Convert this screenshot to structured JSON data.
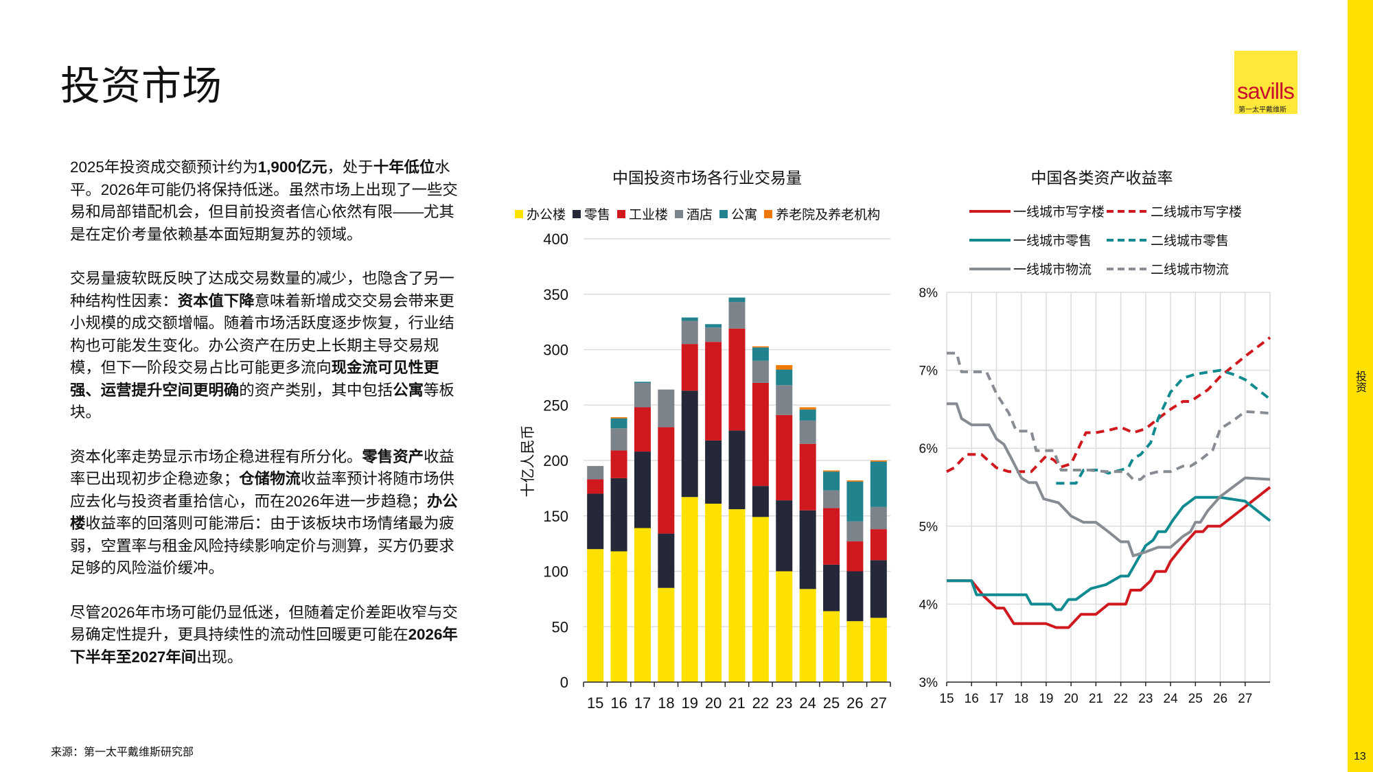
{
  "page_title": "投资市场",
  "paragraphs": [
    [
      {
        "t": "2025年投资成交额预计约为"
      },
      {
        "t": "1,900亿元",
        "b": true
      },
      {
        "t": "，处于"
      },
      {
        "t": "十年低位",
        "b": true
      },
      {
        "t": "水平。2026年可能仍将保持低迷。虽然市场上出现了一些交易和局部错配机会，但目前投资者信心依然有限——尤其是在定价考量依赖基本面短期复苏的领域。"
      }
    ],
    [
      {
        "t": "交易量疲软既反映了达成交易数量的减少，也隐含了另一种结构性因素："
      },
      {
        "t": "资本值下降",
        "b": true
      },
      {
        "t": "意味着新增成交交易会带来更小规模的成交额增幅。随着市场活跃度逐步恢复，行业结构也可能发生变化。办公资产在历史上长期主导交易规模，但下一阶段交易占比可能更多流向"
      },
      {
        "t": "现金流可见性更强、运营提升空间更明确",
        "b": true
      },
      {
        "t": "的资产类别，其中包括"
      },
      {
        "t": "公寓",
        "b": true
      },
      {
        "t": "等板块。"
      }
    ],
    [
      {
        "t": "资本化率走势显示市场企稳进程有所分化。"
      },
      {
        "t": "零售资产",
        "b": true
      },
      {
        "t": "收益率已出现初步企稳迹象；"
      },
      {
        "t": "仓储物流",
        "b": true
      },
      {
        "t": "收益率预计将随市场供应去化与投资者重拾信心，而在2026年进一步趋稳；"
      },
      {
        "t": "办公楼",
        "b": true
      },
      {
        "t": "收益率的回落则可能滞后：由于该板块市场情绪最为疲弱，空置率与租金风险持续影响定价与测算，买方仍要求足够的风险溢价缓冲。"
      }
    ],
    [
      {
        "t": "尽管2026年市场可能仍显低迷，但随着定价差距收窄与交易确定性提升，更具持续性的流动性回暖更可能在"
      },
      {
        "t": "2026年下半年至2027年间",
        "b": true
      },
      {
        "t": "出现。"
      }
    ]
  ],
  "source": "来源：第一太平戴维斯研究部",
  "logo": {
    "wordmark": "savills",
    "chinese": "第一太平戴维斯"
  },
  "side_label": "投资",
  "page_number": "13",
  "colors": {
    "brand_yellow": "#FFE100",
    "brand_red": "#C8102E"
  },
  "chart_data": [
    {
      "type": "bar",
      "stacked": true,
      "title": "中国投资市场各行业交易量",
      "ylabel": "十亿人民币",
      "ylim": [
        0,
        400
      ],
      "yticks": [
        0,
        50,
        100,
        150,
        200,
        250,
        300,
        350,
        400
      ],
      "grid": true,
      "legend_position": "top",
      "categories": [
        "15",
        "16",
        "17",
        "18",
        "19",
        "20",
        "21",
        "22",
        "23",
        "24",
        "25",
        "26",
        "27"
      ],
      "series": [
        {
          "name": "办公楼",
          "color": "#FFE100",
          "values": [
            120,
            118,
            139,
            85,
            167,
            161,
            156,
            149,
            100,
            84,
            64,
            55,
            58
          ]
        },
        {
          "name": "零售",
          "color": "#252838",
          "values": [
            50,
            66,
            69,
            49,
            96,
            57,
            71,
            28,
            64,
            71,
            42,
            45,
            52
          ]
        },
        {
          "name": "工业楼",
          "color": "#D0191F",
          "values": [
            13,
            25,
            40,
            96,
            42,
            89,
            92,
            93,
            77,
            60,
            51,
            27,
            28
          ]
        },
        {
          "name": "酒店",
          "color": "#7D838B",
          "values": [
            12,
            20,
            22,
            34,
            21,
            13,
            24,
            20,
            27,
            21,
            16,
            18,
            20
          ]
        },
        {
          "name": "公寓",
          "color": "#22838F",
          "values": [
            0,
            9,
            1,
            0,
            3,
            3,
            4,
            12,
            14,
            10,
            17,
            36,
            41
          ]
        },
        {
          "name": "养老院及养老机构",
          "color": "#F07800",
          "values": [
            0,
            1,
            0,
            0,
            0,
            0,
            0,
            1,
            4,
            2,
            1,
            1,
            1
          ]
        }
      ]
    },
    {
      "type": "line",
      "title": "中国各类资产收益率",
      "xlim": [
        15,
        28
      ],
      "xticks": [
        "15",
        "16",
        "17",
        "18",
        "19",
        "20",
        "21",
        "22",
        "23",
        "24",
        "25",
        "26",
        "27"
      ],
      "ylim": [
        3,
        8
      ],
      "yticks": [
        "3%",
        "4%",
        "5%",
        "6%",
        "7%",
        "8%"
      ],
      "grid": true,
      "legend_position": "top",
      "series": [
        {
          "name": "一线城市写字楼",
          "color": "#D0191F",
          "dash": false,
          "points": [
            [
              15,
              4.3
            ],
            [
              16,
              4.3
            ],
            [
              16.5,
              4.1
            ],
            [
              17,
              3.95
            ],
            [
              17.3,
              3.95
            ],
            [
              17.7,
              3.75
            ],
            [
              19,
              3.75
            ],
            [
              19.4,
              3.7
            ],
            [
              19.9,
              3.7
            ],
            [
              20.4,
              3.87
            ],
            [
              21,
              3.87
            ],
            [
              21.5,
              4.0
            ],
            [
              22.2,
              4.0
            ],
            [
              22.4,
              4.18
            ],
            [
              22.8,
              4.18
            ],
            [
              23.2,
              4.3
            ],
            [
              23.4,
              4.42
            ],
            [
              23.8,
              4.42
            ],
            [
              24,
              4.55
            ],
            [
              24.5,
              4.75
            ],
            [
              25,
              4.93
            ],
            [
              25.3,
              4.93
            ],
            [
              25.5,
              5.0
            ],
            [
              26,
              5.0
            ],
            [
              27,
              5.25
            ],
            [
              28,
              5.5
            ]
          ]
        },
        {
          "name": "二线城市写字楼",
          "color": "#D0191F",
          "dash": true,
          "points": [
            [
              15,
              5.7
            ],
            [
              15.3,
              5.75
            ],
            [
              15.8,
              5.92
            ],
            [
              16.4,
              5.92
            ],
            [
              17,
              5.75
            ],
            [
              17.5,
              5.7
            ],
            [
              18.4,
              5.7
            ],
            [
              19,
              5.9
            ],
            [
              19.3,
              5.85
            ],
            [
              19.6,
              5.76
            ],
            [
              20,
              5.8
            ],
            [
              20.6,
              6.2
            ],
            [
              21,
              6.2
            ],
            [
              21.5,
              6.23
            ],
            [
              22,
              6.27
            ],
            [
              22.5,
              6.2
            ],
            [
              23,
              6.25
            ],
            [
              23.5,
              6.38
            ],
            [
              24,
              6.5
            ],
            [
              24.5,
              6.6
            ],
            [
              24.8,
              6.6
            ],
            [
              25.5,
              6.75
            ],
            [
              26,
              6.92
            ],
            [
              27,
              7.18
            ],
            [
              28,
              7.42
            ]
          ]
        },
        {
          "name": "一线城市零售",
          "color": "#0E8A90",
          "dash": false,
          "points": [
            [
              15,
              4.3
            ],
            [
              16,
              4.3
            ],
            [
              16.2,
              4.12
            ],
            [
              18.2,
              4.12
            ],
            [
              18.4,
              4.0
            ],
            [
              19.2,
              4.0
            ],
            [
              19.4,
              3.93
            ],
            [
              19.6,
              3.93
            ],
            [
              19.9,
              4.06
            ],
            [
              20.2,
              4.06
            ],
            [
              20.5,
              4.13
            ],
            [
              20.8,
              4.2
            ],
            [
              21.4,
              4.25
            ],
            [
              22,
              4.36
            ],
            [
              22.3,
              4.36
            ],
            [
              23,
              4.75
            ],
            [
              23.3,
              4.82
            ],
            [
              23.5,
              4.93
            ],
            [
              23.8,
              4.93
            ],
            [
              24.1,
              5.08
            ],
            [
              24.5,
              5.25
            ],
            [
              25,
              5.37
            ],
            [
              26,
              5.37
            ],
            [
              27,
              5.32
            ],
            [
              28,
              5.07
            ]
          ]
        },
        {
          "name": "二线城市零售",
          "color": "#0E8A90",
          "dash": true,
          "points": [
            [
              19.4,
              5.55
            ],
            [
              20.2,
              5.55
            ],
            [
              20.5,
              5.72
            ],
            [
              21.2,
              5.72
            ],
            [
              21.5,
              5.68
            ],
            [
              22,
              5.72
            ],
            [
              22.3,
              5.75
            ],
            [
              22.5,
              5.87
            ],
            [
              22.8,
              5.92
            ],
            [
              23.2,
              6.07
            ],
            [
              23.5,
              6.38
            ],
            [
              24,
              6.72
            ],
            [
              24.5,
              6.9
            ],
            [
              25,
              6.95
            ],
            [
              26,
              7.0
            ],
            [
              26.5,
              6.95
            ],
            [
              27,
              6.88
            ],
            [
              28,
              6.63
            ]
          ]
        },
        {
          "name": "一线城市物流",
          "color": "#878B92",
          "dash": false,
          "points": [
            [
              15,
              6.57
            ],
            [
              15.4,
              6.57
            ],
            [
              15.6,
              6.38
            ],
            [
              16,
              6.3
            ],
            [
              16.7,
              6.3
            ],
            [
              17,
              6.12
            ],
            [
              17.3,
              6.05
            ],
            [
              17.6,
              5.87
            ],
            [
              18,
              5.62
            ],
            [
              18.3,
              5.56
            ],
            [
              18.6,
              5.56
            ],
            [
              18.9,
              5.35
            ],
            [
              19.5,
              5.3
            ],
            [
              19.8,
              5.2
            ],
            [
              20,
              5.13
            ],
            [
              20.5,
              5.05
            ],
            [
              21,
              5.05
            ],
            [
              21.5,
              4.93
            ],
            [
              22,
              4.8
            ],
            [
              22.3,
              4.8
            ],
            [
              22.5,
              4.62
            ],
            [
              23,
              4.67
            ],
            [
              23.5,
              4.73
            ],
            [
              24,
              4.73
            ],
            [
              24.5,
              4.87
            ],
            [
              24.8,
              4.93
            ],
            [
              25,
              5.05
            ],
            [
              25.2,
              5.05
            ],
            [
              25.5,
              5.2
            ],
            [
              26,
              5.38
            ],
            [
              27,
              5.62
            ],
            [
              28,
              5.6
            ]
          ]
        },
        {
          "name": "二线城市物流",
          "color": "#878B92",
          "dash": true,
          "points": [
            [
              15,
              7.22
            ],
            [
              15.4,
              7.22
            ],
            [
              15.6,
              6.98
            ],
            [
              16.6,
              6.98
            ],
            [
              17,
              6.7
            ],
            [
              17.5,
              6.45
            ],
            [
              17.8,
              6.22
            ],
            [
              18.4,
              6.22
            ],
            [
              18.6,
              5.97
            ],
            [
              19.3,
              5.97
            ],
            [
              19.6,
              5.72
            ],
            [
              20.7,
              5.72
            ],
            [
              21.4,
              5.7
            ],
            [
              22.2,
              5.7
            ],
            [
              22.5,
              5.6
            ],
            [
              22.8,
              5.6
            ],
            [
              23,
              5.66
            ],
            [
              23.5,
              5.7
            ],
            [
              24,
              5.7
            ],
            [
              24.5,
              5.77
            ],
            [
              24.8,
              5.77
            ],
            [
              25.2,
              5.85
            ],
            [
              25.7,
              5.98
            ],
            [
              26,
              6.25
            ],
            [
              26.5,
              6.35
            ],
            [
              27,
              6.47
            ],
            [
              28,
              6.45
            ]
          ]
        }
      ]
    }
  ]
}
